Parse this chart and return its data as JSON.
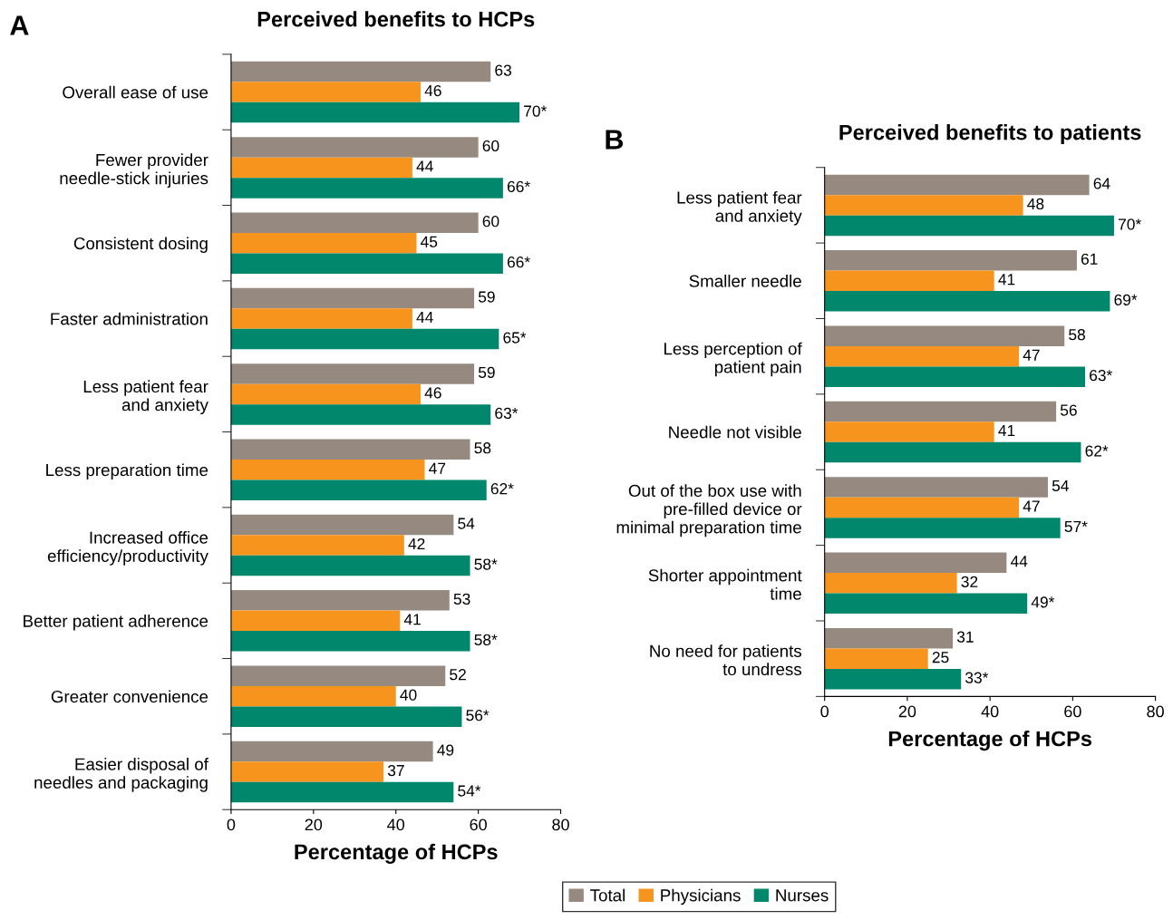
{
  "chart_data": [
    {
      "type": "bar",
      "orientation": "horizontal",
      "title": "Perceived benefits to HCPs",
      "xlabel": "Percentage of HCPs",
      "annotations": [
        "A"
      ],
      "legend": "bottom",
      "grid": false,
      "categories": [
        "Overall ease of use",
        "Fewer provider\nneedle-stick injuries",
        "Consistent dosing",
        "Faster administration",
        "Less patient fear\nand anxiety",
        "Less preparation time",
        "Increased office\nefficiency/productivity",
        "Better patient adherence",
        "Greater convenience",
        "Easier disposal of\nneedles and packaging"
      ],
      "xlim": [
        0,
        80
      ],
      "xticks": [
        0,
        20,
        40,
        60,
        80
      ],
      "series": [
        {
          "name": "Total",
          "color": "#968a80",
          "values": [
            63,
            60,
            60,
            59,
            59,
            58,
            54,
            53,
            52,
            49
          ],
          "value_labels": [
            "63",
            "60",
            "60",
            "59",
            "59",
            "58",
            "54",
            "53",
            "52",
            "49"
          ]
        },
        {
          "name": "Physicians",
          "color": "#f7941d",
          "values": [
            46,
            44,
            45,
            44,
            46,
            47,
            42,
            41,
            40,
            37
          ],
          "value_labels": [
            "46",
            "44",
            "45",
            "44",
            "46",
            "47",
            "42",
            "41",
            "40",
            "37"
          ]
        },
        {
          "name": "Nurses",
          "color": "#00876c",
          "values": [
            70,
            66,
            66,
            65,
            63,
            62,
            58,
            58,
            56,
            54
          ],
          "value_labels": [
            "70*",
            "66*",
            "66*",
            "65*",
            "63*",
            "62*",
            "58*",
            "58*",
            "56*",
            "54*"
          ]
        }
      ]
    },
    {
      "type": "bar",
      "orientation": "horizontal",
      "title": "Perceived benefits to patients",
      "xlabel": "Percentage of HCPs",
      "annotations": [
        "B"
      ],
      "grid": false,
      "categories": [
        "Less patient fear\nand anxiety",
        "Smaller needle",
        "Less perception of\npatient pain",
        "Needle not visible",
        "Out of the box use with\npre-filled device or\nminimal preparation time",
        "Shorter appointment\ntime",
        "No need for patients\nto undress"
      ],
      "xlim": [
        0,
        80
      ],
      "xticks": [
        0,
        20,
        40,
        60,
        80
      ],
      "series": [
        {
          "color": "#968a80",
          "values": [
            64,
            61,
            58,
            56,
            54,
            44,
            31
          ],
          "value_labels": [
            "64",
            "61",
            "58",
            "56",
            "54",
            "44",
            "31"
          ]
        },
        {
          "color": "#f7941d",
          "values": [
            48,
            41,
            47,
            41,
            47,
            32,
            25
          ],
          "value_labels": [
            "48",
            "41",
            "47",
            "41",
            "47",
            "32",
            "25"
          ]
        },
        {
          "color": "#00876c",
          "values": [
            70,
            69,
            63,
            62,
            57,
            49,
            33
          ],
          "value_labels": [
            "70*",
            "69*",
            "63*",
            "62*",
            "57*",
            "49*",
            "33*"
          ]
        }
      ]
    }
  ]
}
